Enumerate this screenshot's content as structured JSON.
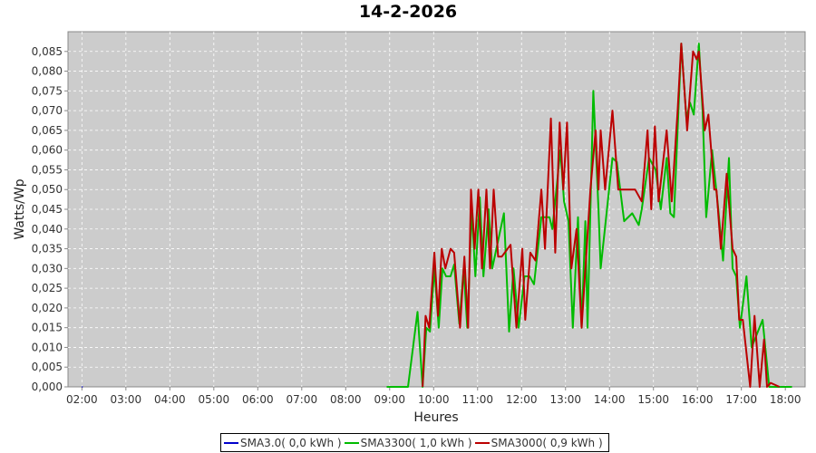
{
  "chart_data": {
    "type": "line",
    "title": "14-2-2026",
    "xlabel": "Heures",
    "ylabel": "Watts/Wp",
    "xlim": [
      "01:41",
      "18:27"
    ],
    "ylim": [
      0,
      0.09
    ],
    "grid": true,
    "legend_position": "bottom",
    "background": "#cccccc",
    "x_ticks": [
      "02:00",
      "03:00",
      "04:00",
      "05:00",
      "06:00",
      "07:00",
      "08:00",
      "09:00",
      "10:00",
      "11:00",
      "12:00",
      "13:00",
      "14:00",
      "15:00",
      "16:00",
      "17:00",
      "18:00"
    ],
    "y_ticks": [
      0,
      0.005,
      0.01,
      0.015,
      0.02,
      0.025,
      0.03,
      0.035,
      0.04,
      0.045,
      0.05,
      0.055,
      0.06,
      0.065,
      0.07,
      0.075,
      0.08,
      0.085
    ],
    "y_tick_labels": [
      "0,000",
      "0,005",
      "0,010",
      "0,015",
      "0,020",
      "0,025",
      "0,030",
      "0,035",
      "0,040",
      "0,045",
      "0,050",
      "0,055",
      "0,060",
      "0,065",
      "0,070",
      "0,075",
      "0,080",
      "0,085"
    ],
    "series": [
      {
        "name": "SMA3.0",
        "legend": "SMA3.0( 0,0 kWh )",
        "color": "#0000cc",
        "points": [
          [
            "02:00",
            0
          ],
          [
            "02:01",
            0
          ]
        ]
      },
      {
        "name": "SMA3300",
        "legend": "SMA3300( 1,0 kWh )",
        "color": "#00bb00",
        "points": [
          [
            "08:56",
            0
          ],
          [
            "09:25",
            0
          ],
          [
            "09:38",
            0.019
          ],
          [
            "09:45",
            0
          ],
          [
            "09:50",
            0.015
          ],
          [
            "09:55",
            0.014
          ],
          [
            "10:01",
            0.03
          ],
          [
            "10:07",
            0.015
          ],
          [
            "10:12",
            0.03
          ],
          [
            "10:17",
            0.028
          ],
          [
            "10:23",
            0.028
          ],
          [
            "10:28",
            0.031
          ],
          [
            "10:35",
            0.016
          ],
          [
            "10:41",
            0.03
          ],
          [
            "10:46",
            0.015
          ],
          [
            "10:52",
            0.045
          ],
          [
            "10:57",
            0.028
          ],
          [
            "11:03",
            0.048
          ],
          [
            "11:08",
            0.028
          ],
          [
            "11:15",
            0.045
          ],
          [
            "11:20",
            0.03
          ],
          [
            "11:36",
            0.044
          ],
          [
            "11:43",
            0.014
          ],
          [
            "11:49",
            0.03
          ],
          [
            "11:56",
            0.015
          ],
          [
            "12:04",
            0.028
          ],
          [
            "12:11",
            0.028
          ],
          [
            "12:17",
            0.026
          ],
          [
            "12:27",
            0.043
          ],
          [
            "12:38",
            0.043
          ],
          [
            "12:42",
            0.04
          ],
          [
            "12:53",
            0.06
          ],
          [
            "12:58",
            0.047
          ],
          [
            "13:04",
            0.042
          ],
          [
            "13:10",
            0.015
          ],
          [
            "13:17",
            0.043
          ],
          [
            "13:22",
            0.015
          ],
          [
            "13:27",
            0.042
          ],
          [
            "13:30",
            0.015
          ],
          [
            "13:38",
            0.075
          ],
          [
            "13:45",
            0.045
          ],
          [
            "13:48",
            0.03
          ],
          [
            "14:04",
            0.058
          ],
          [
            "14:10",
            0.057
          ],
          [
            "14:20",
            0.042
          ],
          [
            "14:31",
            0.044
          ],
          [
            "14:40",
            0.041
          ],
          [
            "14:44",
            0.045
          ],
          [
            "14:54",
            0.058
          ],
          [
            "15:03",
            0.055
          ],
          [
            "15:10",
            0.045
          ],
          [
            "15:18",
            0.058
          ],
          [
            "15:23",
            0.044
          ],
          [
            "15:28",
            0.043
          ],
          [
            "15:38",
            0.087
          ],
          [
            "15:45",
            0.068
          ],
          [
            "15:50",
            0.072
          ],
          [
            "15:55",
            0.069
          ],
          [
            "16:02",
            0.087
          ],
          [
            "16:07",
            0.07
          ],
          [
            "16:12",
            0.043
          ],
          [
            "16:20",
            0.06
          ],
          [
            "16:28",
            0.046
          ],
          [
            "16:35",
            0.032
          ],
          [
            "16:43",
            0.058
          ],
          [
            "16:48",
            0.03
          ],
          [
            "16:53",
            0.028
          ],
          [
            "16:58",
            0.015
          ],
          [
            "17:07",
            0.028
          ],
          [
            "17:14",
            0.01
          ],
          [
            "17:29",
            0.017
          ],
          [
            "17:38",
            0
          ],
          [
            "18:09",
            0
          ]
        ]
      },
      {
        "name": "SMA3000",
        "legend": "SMA3000( 0,9 kWh )",
        "color": "#bb0000",
        "points": [
          [
            "09:45",
            0
          ],
          [
            "09:49",
            0.018
          ],
          [
            "09:54",
            0.015
          ],
          [
            "10:01",
            0.034
          ],
          [
            "10:06",
            0.018
          ],
          [
            "10:11",
            0.035
          ],
          [
            "10:16",
            0.03
          ],
          [
            "10:23",
            0.035
          ],
          [
            "10:28",
            0.034
          ],
          [
            "10:36",
            0.015
          ],
          [
            "10:42",
            0.033
          ],
          [
            "10:47",
            0.015
          ],
          [
            "10:51",
            0.05
          ],
          [
            "10:56",
            0.035
          ],
          [
            "11:01",
            0.05
          ],
          [
            "11:06",
            0.03
          ],
          [
            "11:12",
            0.05
          ],
          [
            "11:17",
            0.03
          ],
          [
            "11:22",
            0.05
          ],
          [
            "11:28",
            0.033
          ],
          [
            "11:33",
            0.033
          ],
          [
            "11:45",
            0.036
          ],
          [
            "11:53",
            0.015
          ],
          [
            "12:01",
            0.035
          ],
          [
            "12:05",
            0.017
          ],
          [
            "12:12",
            0.034
          ],
          [
            "12:19",
            0.032
          ],
          [
            "12:27",
            0.05
          ],
          [
            "12:32",
            0.035
          ],
          [
            "12:40",
            0.068
          ],
          [
            "12:46",
            0.034
          ],
          [
            "12:52",
            0.067
          ],
          [
            "12:57",
            0.05
          ],
          [
            "13:02",
            0.067
          ],
          [
            "13:08",
            0.03
          ],
          [
            "13:15",
            0.04
          ],
          [
            "13:22",
            0.015
          ],
          [
            "13:34",
            0.05
          ],
          [
            "13:41",
            0.065
          ],
          [
            "13:45",
            0.05
          ],
          [
            "13:48",
            0.065
          ],
          [
            "13:54",
            0.05
          ],
          [
            "14:04",
            0.07
          ],
          [
            "14:12",
            0.05
          ],
          [
            "14:35",
            0.05
          ],
          [
            "14:44",
            0.047
          ],
          [
            "14:52",
            0.065
          ],
          [
            "14:57",
            0.045
          ],
          [
            "15:02",
            0.066
          ],
          [
            "15:07",
            0.047
          ],
          [
            "15:18",
            0.065
          ],
          [
            "15:25",
            0.047
          ],
          [
            "15:33",
            0.07
          ],
          [
            "15:38",
            0.087
          ],
          [
            "15:46",
            0.065
          ],
          [
            "15:54",
            0.085
          ],
          [
            "15:59",
            0.083
          ],
          [
            "16:02",
            0.085
          ],
          [
            "16:10",
            0.065
          ],
          [
            "16:15",
            0.069
          ],
          [
            "16:23",
            0.05
          ],
          [
            "16:26",
            0.05
          ],
          [
            "16:32",
            0.035
          ],
          [
            "16:40",
            0.054
          ],
          [
            "16:48",
            0.035
          ],
          [
            "16:53",
            0.033
          ],
          [
            "16:57",
            0.017
          ],
          [
            "17:02",
            0.017
          ],
          [
            "17:12",
            0
          ],
          [
            "17:18",
            0.018
          ],
          [
            "17:25",
            0
          ],
          [
            "17:31",
            0.012
          ],
          [
            "17:35",
            0
          ],
          [
            "17:40",
            0.001
          ],
          [
            "17:52",
            0
          ]
        ]
      }
    ]
  }
}
